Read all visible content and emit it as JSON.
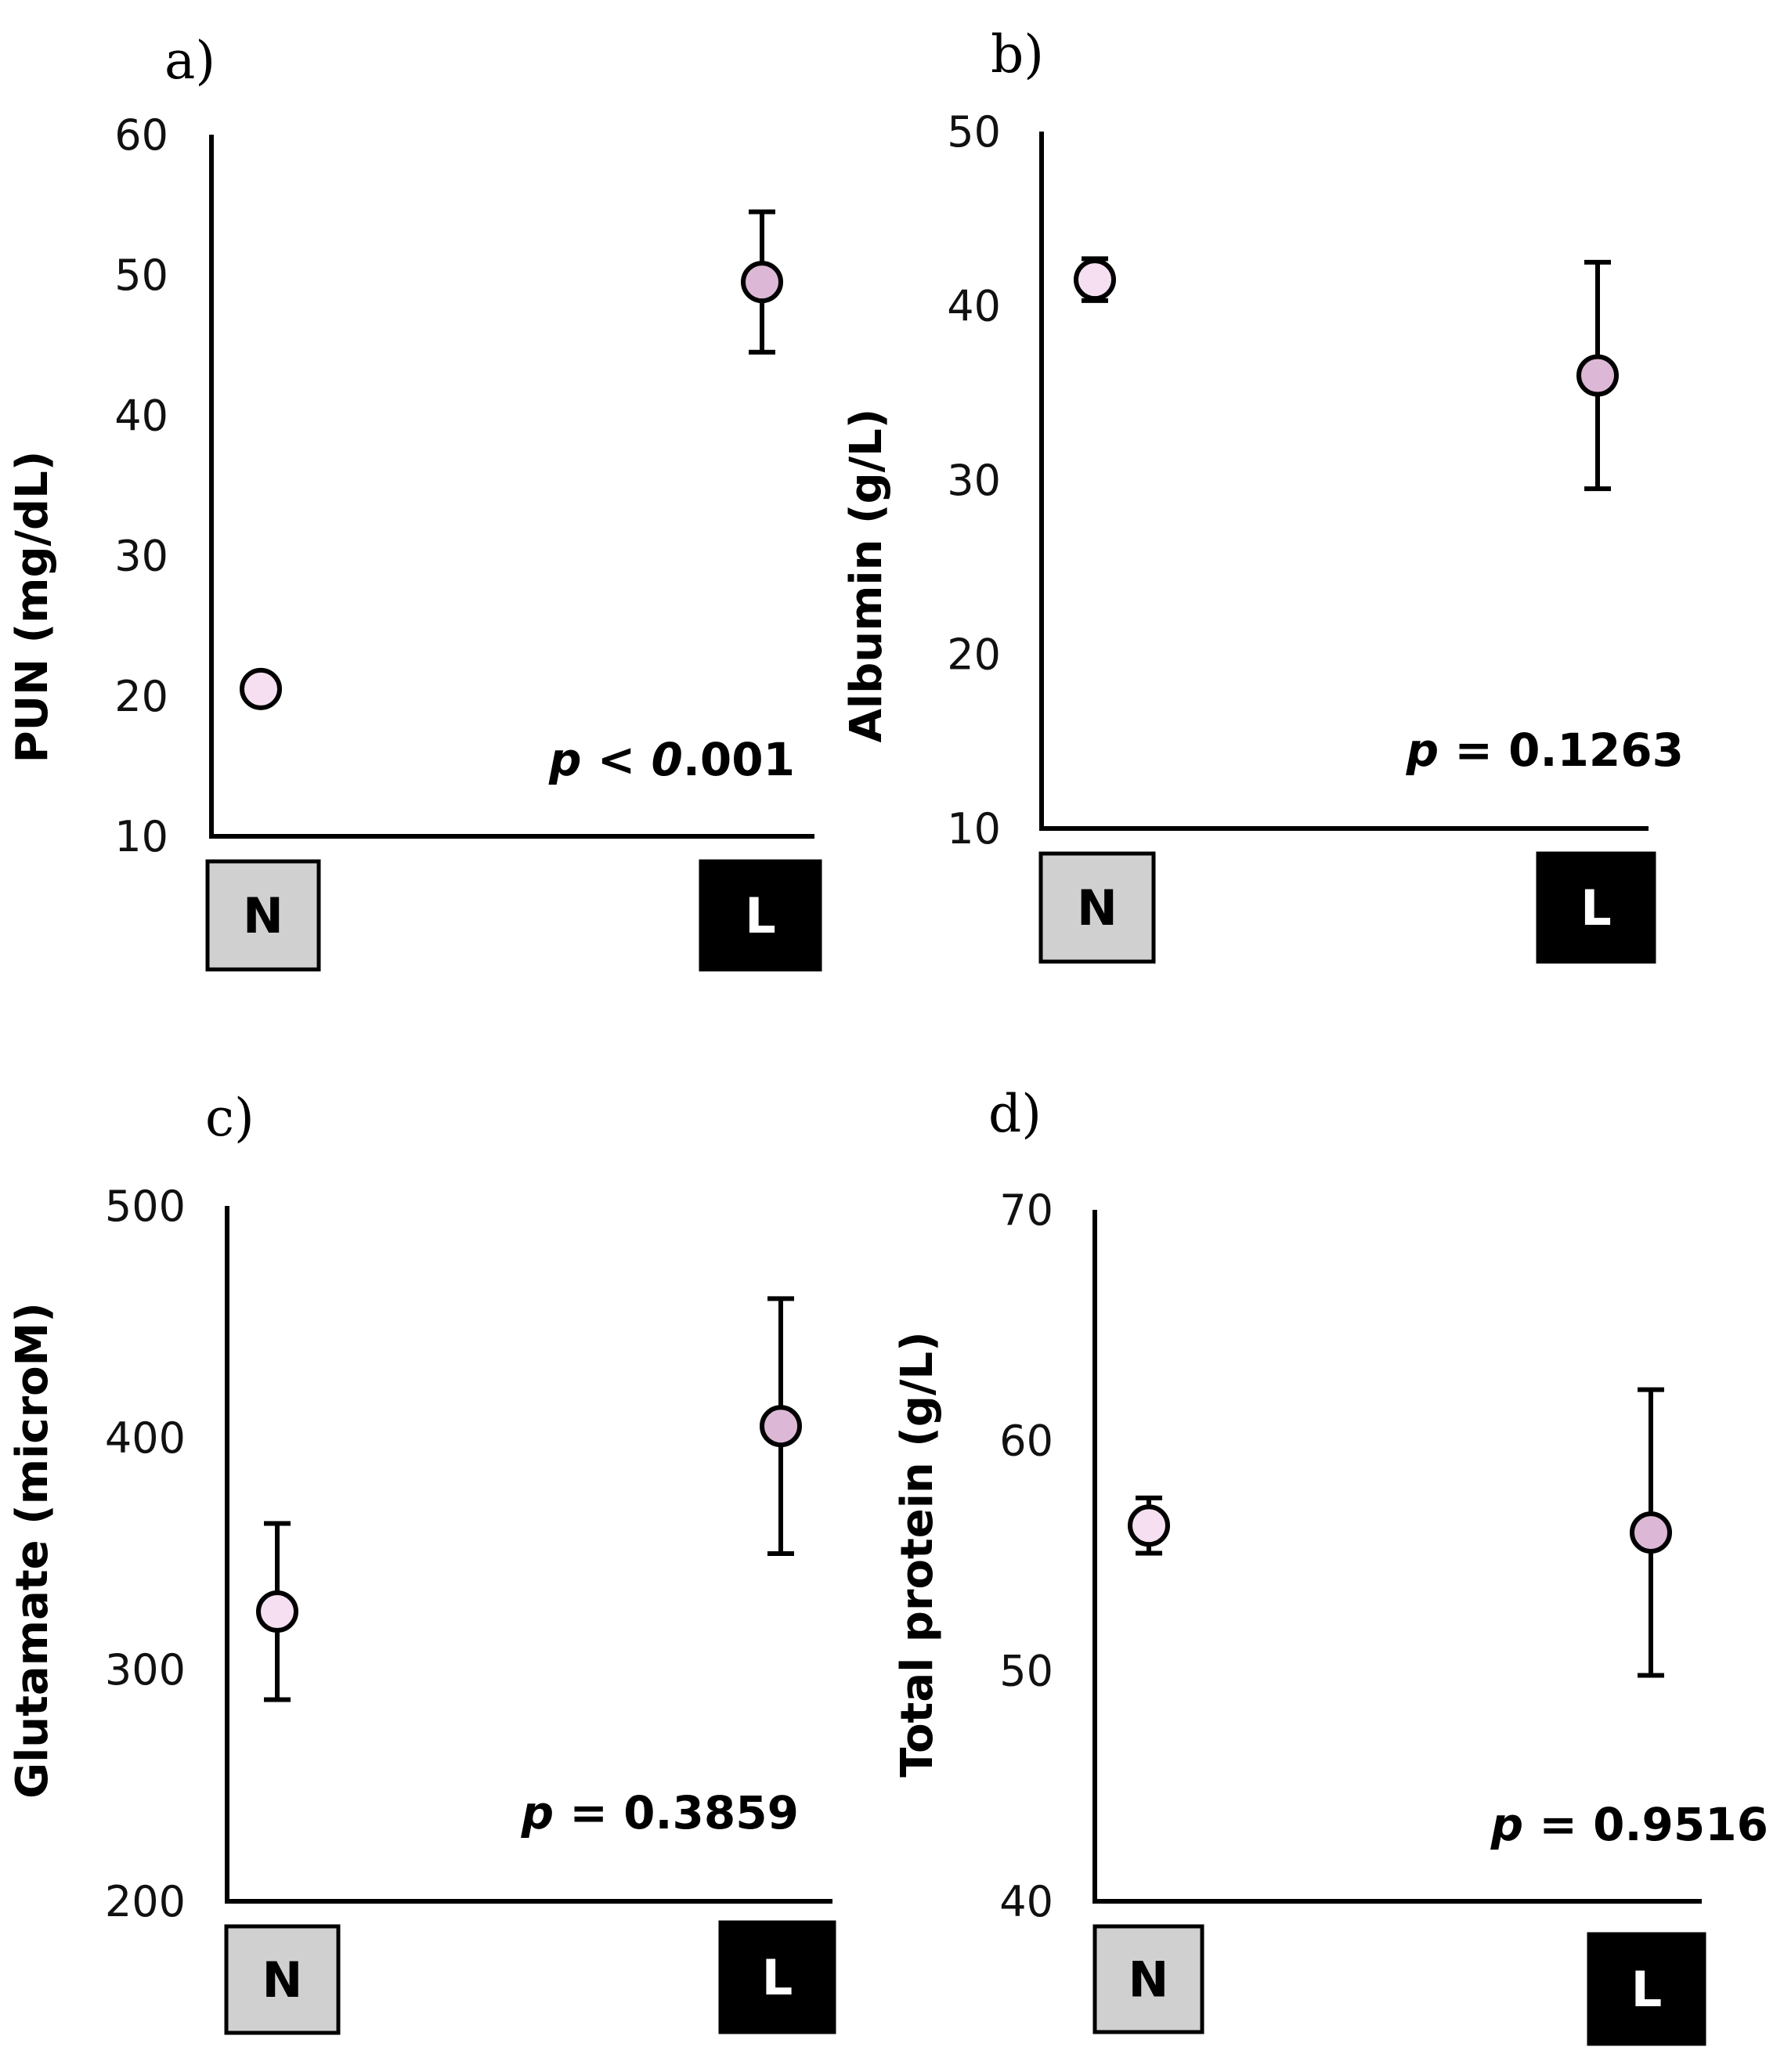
{
  "chart_data": [
    {
      "type": "scatter",
      "panel": "a)",
      "ylabel": "PUN (mg/dL)",
      "ylim": [
        10,
        60
      ],
      "yticks": [
        10,
        20,
        30,
        40,
        50,
        60
      ],
      "categories": [
        "N",
        "L"
      ],
      "means": [
        20.5,
        49.5
      ],
      "errors": [
        0,
        5
      ],
      "p_prefix": "p",
      "p_op": " < ",
      "p_italic_part": "0",
      "p_rest": ".001"
    },
    {
      "type": "scatter",
      "panel": "b)",
      "ylabel": "Albumin (g/L)",
      "ylim": [
        10,
        50
      ],
      "yticks": [
        10,
        20,
        30,
        40,
        50
      ],
      "categories": [
        "N",
        "L"
      ],
      "means": [
        41.5,
        36
      ],
      "errors": [
        1.2,
        6.5
      ],
      "p_prefix": "p",
      "p_op": " = ",
      "p_italic_part": "",
      "p_rest": "0.1263"
    },
    {
      "type": "scatter",
      "panel": "c)",
      "ylabel": "Glutamate (microM)",
      "ylim": [
        200,
        500
      ],
      "yticks": [
        200,
        300,
        400,
        500
      ],
      "categories": [
        "N",
        "L"
      ],
      "means": [
        325,
        405
      ],
      "errors": [
        38,
        55
      ],
      "p_prefix": "p",
      "p_op": " = ",
      "p_italic_part": "",
      "p_rest": "0.3859"
    },
    {
      "type": "scatter",
      "panel": "d)",
      "ylabel": "Total protein (g/L)",
      "ylim": [
        40,
        70
      ],
      "yticks": [
        40,
        50,
        60,
        70
      ],
      "categories": [
        "N",
        "L"
      ],
      "means": [
        56.3,
        56
      ],
      "errors": [
        1.2,
        6.2
      ],
      "p_prefix": "p",
      "p_op": " = ",
      "p_italic_part": "",
      "p_rest": "0.9516"
    }
  ],
  "colors": {
    "marker_N": "#f5dff0",
    "marker_L": "#dcb8d6",
    "box_N": "#d0d0d0",
    "box_L": "#000000",
    "text_N": "#000000",
    "text_L": "#ffffff"
  }
}
